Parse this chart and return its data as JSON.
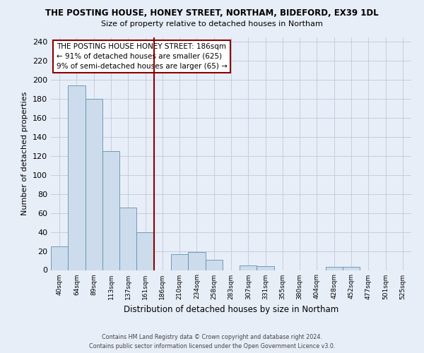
{
  "title": "THE POSTING HOUSE, HONEY STREET, NORTHAM, BIDEFORD, EX39 1DL",
  "subtitle": "Size of property relative to detached houses in Northam",
  "xlabel": "Distribution of detached houses by size in Northam",
  "ylabel": "Number of detached properties",
  "bin_labels": [
    "40sqm",
    "64sqm",
    "89sqm",
    "113sqm",
    "137sqm",
    "161sqm",
    "186sqm",
    "210sqm",
    "234sqm",
    "258sqm",
    "283sqm",
    "307sqm",
    "331sqm",
    "355sqm",
    "380sqm",
    "404sqm",
    "428sqm",
    "452sqm",
    "477sqm",
    "501sqm",
    "525sqm"
  ],
  "bar_heights": [
    25,
    194,
    180,
    125,
    66,
    40,
    0,
    17,
    19,
    11,
    0,
    5,
    4,
    0,
    0,
    0,
    3,
    3,
    0,
    0,
    0
  ],
  "bar_color": "#ccdcec",
  "bar_edgecolor": "#6090b0",
  "highlight_index": 6,
  "highlight_line_color": "#8b0000",
  "ylim": [
    0,
    245
  ],
  "yticks": [
    0,
    20,
    40,
    60,
    80,
    100,
    120,
    140,
    160,
    180,
    200,
    220,
    240
  ],
  "annotation_title": "THE POSTING HOUSE HONEY STREET: 186sqm",
  "annotation_line1": "← 91% of detached houses are smaller (625)",
  "annotation_line2": "9% of semi-detached houses are larger (65) →",
  "annotation_box_edgecolor": "#8b0000",
  "footer_line1": "Contains HM Land Registry data © Crown copyright and database right 2024.",
  "footer_line2": "Contains public sector information licensed under the Open Government Licence v3.0.",
  "background_color": "#e8eef8",
  "plot_background_color": "#e8eef8",
  "grid_color": "#c0c8d8"
}
